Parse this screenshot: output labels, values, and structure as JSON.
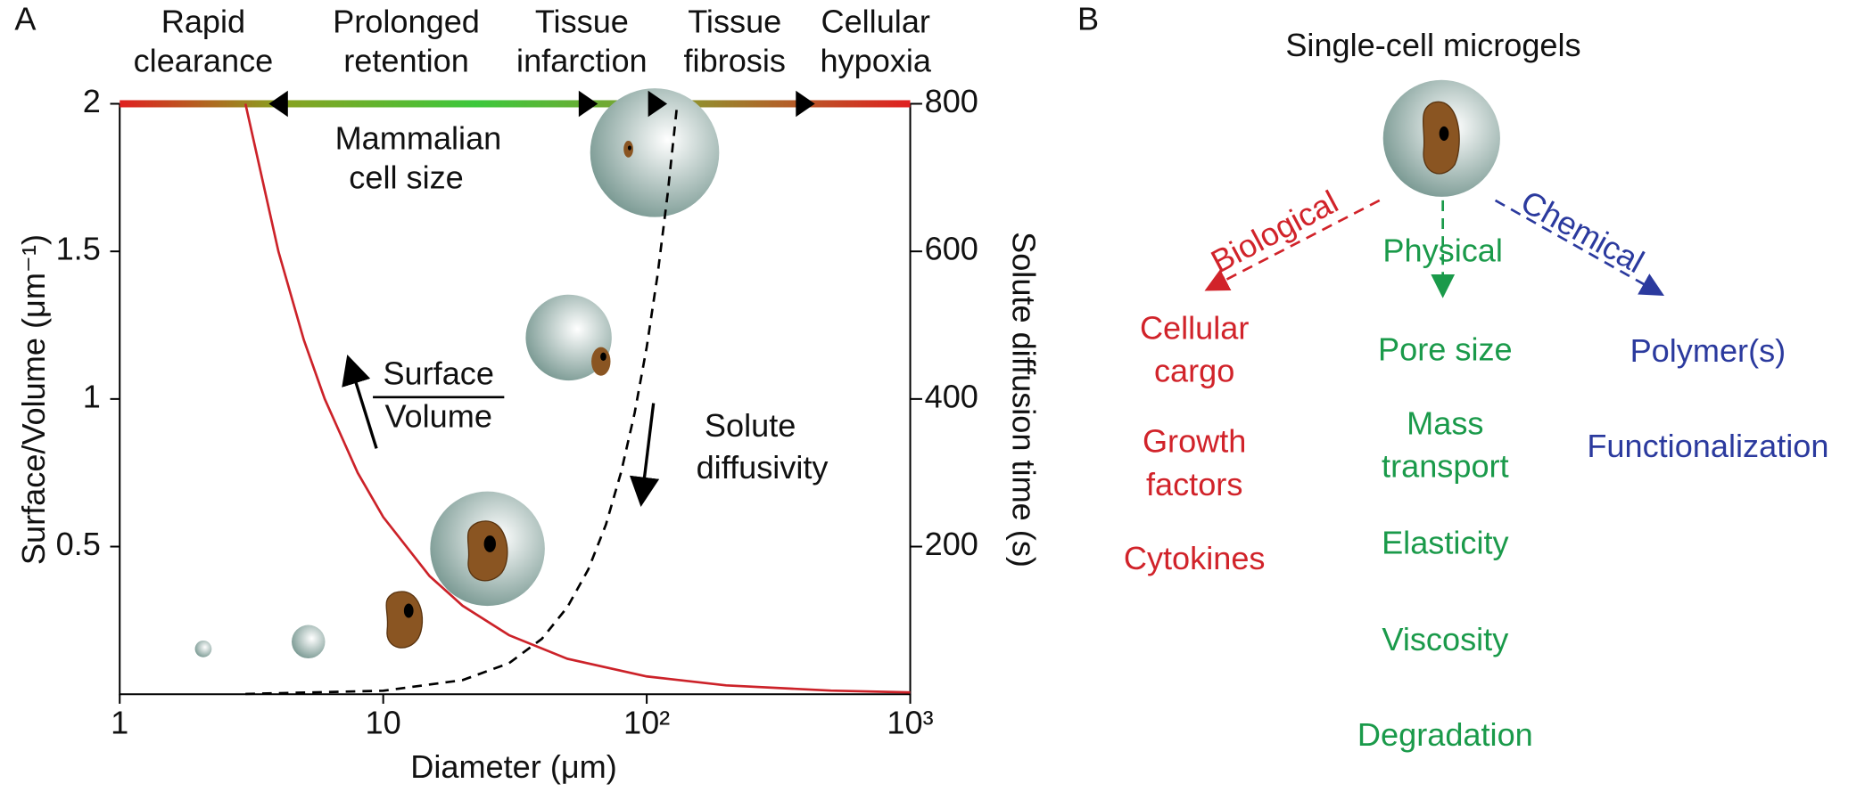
{
  "chart_data": {
    "type": "line",
    "panel_label": "A",
    "xlabel": "Diameter (μm)",
    "ylabel": "Surface/Volume (μm⁻¹)",
    "y2label": "Solute diffusion time (s)",
    "xscale": "log",
    "xlim": [
      1,
      1000
    ],
    "xticks": [
      1,
      10,
      {
        "value": 100,
        "label": "10²"
      },
      {
        "value": 1000,
        "label": "10³"
      }
    ],
    "ylim": [
      0,
      2
    ],
    "yticks": [
      0.5,
      1,
      1.5,
      2
    ],
    "y2lim": [
      0,
      800
    ],
    "y2ticks": [
      200,
      400,
      600,
      800
    ],
    "series": [
      {
        "color": "#cc2229",
        "x": [
          3,
          4,
          5,
          6,
          8,
          10,
          15,
          20,
          30,
          50,
          100,
          200,
          500,
          1000
        ],
        "values": [
          2,
          1.5,
          1.2,
          1,
          0.75,
          0.6,
          0.4,
          0.3,
          0.2,
          0.12,
          0.06,
          0.03,
          0.012,
          0.006
        ]
      },
      {
        "color": "#000000",
        "dashed": true,
        "axis": "y2",
        "x": [
          3,
          10,
          20,
          30,
          40,
          50,
          60,
          70,
          80,
          90,
          100,
          110,
          120,
          130
        ],
        "values": [
          0.4,
          4.7,
          19,
          42,
          75,
          118,
          169,
          230,
          301,
          381,
          470,
          569,
          677,
          794
        ]
      }
    ],
    "region_labels": [
      [
        "Rapid",
        "clearance"
      ],
      [
        "Prolonged",
        "retention"
      ],
      [
        "Tissue",
        "infarction"
      ],
      [
        "Tissue",
        "fibrosis"
      ],
      [
        "Cellular",
        "hypoxia"
      ]
    ],
    "region_boundaries": [
      4,
      60,
      110,
      400
    ],
    "cell_size_label": [
      "Mammalian",
      "cell size"
    ],
    "surface_label": [
      "Surface",
      "Volume"
    ],
    "diffusivity_label": [
      "Solute",
      "diffusivity"
    ]
  },
  "diagram": {
    "panel_label": "B",
    "title": "Single-cell microgels",
    "branches": [
      {
        "name": "Biological",
        "items": [
          [
            "Cellular",
            "cargo"
          ],
          [
            "Growth",
            "factors"
          ],
          [
            "Cytokines"
          ]
        ]
      },
      {
        "name": "Physical",
        "items": [
          [
            "Pore size"
          ],
          [
            "Mass",
            "transport"
          ],
          [
            "Elasticity"
          ],
          [
            "Viscosity"
          ],
          [
            "Degradation"
          ]
        ]
      },
      {
        "name": "Chemical",
        "items": [
          [
            "Polymer(s)"
          ],
          [
            "Functionalization"
          ]
        ]
      }
    ]
  }
}
